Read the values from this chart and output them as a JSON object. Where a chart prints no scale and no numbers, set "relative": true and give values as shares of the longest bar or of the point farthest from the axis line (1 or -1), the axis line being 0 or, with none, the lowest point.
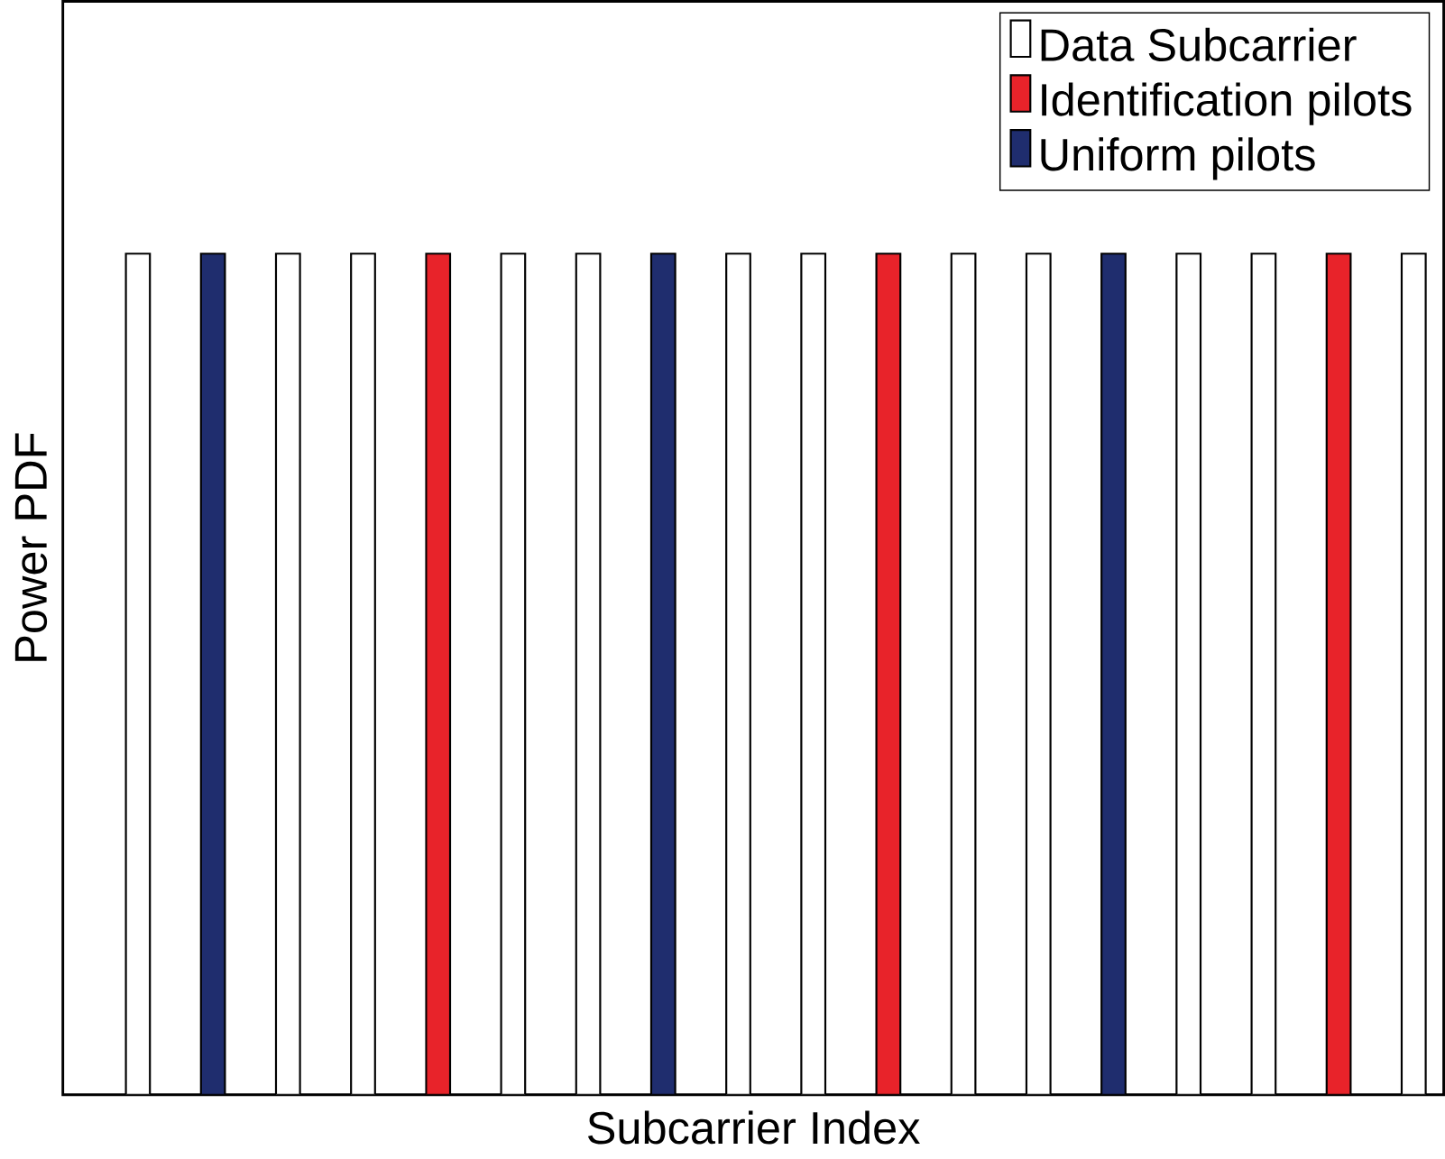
{
  "chart_data": {
    "type": "bar",
    "relative": true,
    "stacked": true,
    "xlabel": "Subcarrier Index",
    "ylabel": "Power PDF",
    "categories": [
      null,
      null,
      null,
      null,
      null,
      null,
      null,
      null,
      null,
      null,
      null,
      null,
      null,
      null,
      null,
      null,
      null,
      null
    ],
    "series": [
      {
        "name": "Data Subcarrier",
        "color": "#ffffff",
        "values": [
          1,
          0,
          1,
          1,
          0,
          1,
          1,
          0,
          1,
          1,
          0,
          1,
          1,
          0,
          1,
          1,
          0,
          1
        ]
      },
      {
        "name": "Identification pilots",
        "color": "#e8232a",
        "values": [
          0,
          0,
          0,
          0,
          1,
          0,
          0,
          0,
          0,
          0,
          1,
          0,
          0,
          0,
          0,
          0,
          1,
          0
        ]
      },
      {
        "name": "Uniform pilots",
        "color": "#1f2d6e",
        "values": [
          0,
          1,
          0,
          0,
          0,
          0,
          0,
          1,
          0,
          0,
          0,
          0,
          0,
          1,
          0,
          0,
          0,
          0
        ]
      }
    ],
    "legend": "top right"
  }
}
